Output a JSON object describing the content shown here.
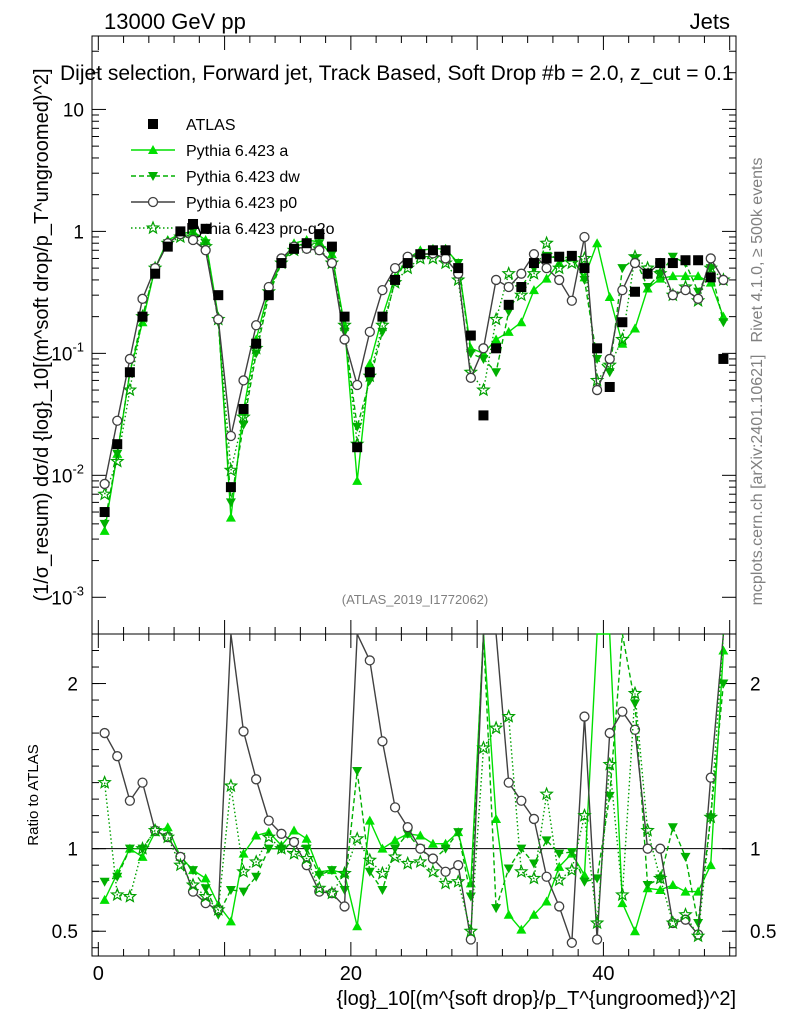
{
  "header": {
    "left_label": "13000 GeV pp",
    "right_label": "Jets",
    "plot_title": "Dijet selection, Forward jet, Track Based, Soft Drop #b = 2.0, z_cut = 0.1",
    "side_rivet": "Rivet 4.1.0, ≥ 500k events",
    "side_site": "mcplots.cern.ch [arXiv:2401.10621]",
    "analysis_id": "(ATLAS_2019_I1772062)"
  },
  "axes": {
    "ylabel_main": "(1/σ_resum) dσ/d {log}_10[(m^soft drop/p_T^ungroomed)^2]",
    "ylabel_ratio": "Ratio to ATLAS",
    "xlabel": "{log}_10[(m^{soft drop}/p_T^{ungroomed})^2]"
  },
  "legend": [
    {
      "key": "atlas",
      "label": "ATLAS"
    },
    {
      "key": "a",
      "label": "Pythia 6.423 a"
    },
    {
      "key": "dw",
      "label": "Pythia 6.423 dw"
    },
    {
      "key": "p0",
      "label": "Pythia 6.423 p0"
    },
    {
      "key": "pro",
      "label": "Pythia 6.423 pro-q2o"
    }
  ],
  "chart_data": {
    "type": "scatter",
    "main": {
      "yscale": "log",
      "xlim": [
        -0.5,
        50.5
      ],
      "ylim": [
        0.0005,
        40
      ],
      "yticks": [
        {
          "v": 0.001,
          "label": "10^-3"
        },
        {
          "v": 0.01,
          "label": "10^-2"
        },
        {
          "v": 0.1,
          "label": "10^-1"
        },
        {
          "v": 1,
          "label": "1"
        },
        {
          "v": 10,
          "label": "10"
        }
      ]
    },
    "ratio": {
      "ylim": [
        0.35,
        2.3
      ],
      "yticks": [
        {
          "v": 0.5,
          "label": "0.5"
        },
        {
          "v": 1,
          "label": "1"
        },
        {
          "v": 2,
          "label": "2"
        }
      ]
    },
    "xticks": [
      {
        "v": 0,
        "label": "0"
      },
      {
        "v": 20,
        "label": "20"
      },
      {
        "v": 40,
        "label": "40"
      }
    ],
    "x": [
      0.5,
      1.5,
      2.5,
      3.5,
      4.5,
      5.5,
      6.5,
      7.5,
      8.5,
      9.5,
      10.5,
      11.5,
      12.5,
      13.5,
      14.5,
      15.5,
      16.5,
      17.5,
      18.5,
      19.5,
      20.5,
      21.5,
      22.5,
      23.5,
      24.5,
      25.5,
      26.5,
      27.5,
      28.5,
      29.5,
      30.5,
      31.5,
      32.5,
      33.5,
      34.5,
      35.5,
      36.5,
      37.5,
      38.5,
      39.5,
      40.5,
      41.5,
      42.5,
      43.5,
      44.5,
      45.5,
      46.5,
      47.5,
      48.5,
      49.5
    ],
    "series": [
      {
        "key": "atlas",
        "name": "ATLAS",
        "color": "#000000",
        "values": [
          0.005,
          0.018,
          0.07,
          0.2,
          0.45,
          0.75,
          1.0,
          1.15,
          1.05,
          0.3,
          0.008,
          0.035,
          0.12,
          0.3,
          0.55,
          0.72,
          0.8,
          0.95,
          0.75,
          0.2,
          0.017,
          0.07,
          0.2,
          0.4,
          0.55,
          0.65,
          0.7,
          0.7,
          0.5,
          0.14,
          0.031,
          0.11,
          0.25,
          0.35,
          0.55,
          0.6,
          0.62,
          0.63,
          0.5,
          0.11,
          0.053,
          0.18,
          0.32,
          0.45,
          0.55,
          0.55,
          0.58,
          0.58,
          0.42,
          0.09
        ]
      },
      {
        "key": "a",
        "name": "Pythia 6.423 a",
        "color": "#00e000",
        "values": [
          0.0035,
          0.015,
          0.07,
          0.18,
          0.5,
          0.85,
          0.95,
          1.0,
          0.85,
          0.2,
          0.0045,
          0.034,
          0.13,
          0.33,
          0.56,
          0.8,
          0.85,
          0.82,
          0.65,
          0.17,
          0.009,
          0.082,
          0.2,
          0.42,
          0.6,
          0.7,
          0.72,
          0.72,
          0.55,
          0.11,
          0.1,
          0.13,
          0.15,
          0.18,
          0.33,
          0.41,
          0.55,
          0.61,
          0.42,
          0.8,
          0.29,
          0.12,
          0.16,
          0.34,
          0.41,
          0.43,
          0.43,
          0.43,
          0.38,
          0.2
        ]
      },
      {
        "key": "dw",
        "name": "Pythia 6.423 dw",
        "color": "#00b000",
        "values": [
          0.004,
          0.015,
          0.07,
          0.2,
          0.5,
          0.8,
          0.95,
          1.0,
          0.8,
          0.18,
          0.006,
          0.026,
          0.1,
          0.3,
          0.55,
          0.75,
          0.8,
          0.8,
          0.65,
          0.15,
          0.025,
          0.06,
          0.15,
          0.4,
          0.6,
          0.65,
          0.65,
          0.7,
          0.55,
          0.1,
          0.09,
          0.07,
          0.22,
          0.35,
          0.5,
          0.63,
          0.6,
          0.62,
          0.4,
          0.09,
          0.07,
          0.5,
          0.6,
          0.35,
          0.45,
          0.62,
          0.55,
          0.32,
          0.5,
          0.18
        ]
      },
      {
        "key": "p0",
        "name": "Pythia 6.423 p0",
        "color": "#404040",
        "values": [
          0.0085,
          0.028,
          0.09,
          0.28,
          0.5,
          0.8,
          0.95,
          0.85,
          0.7,
          0.19,
          0.021,
          0.06,
          0.17,
          0.35,
          0.6,
          0.75,
          0.72,
          0.7,
          0.55,
          0.13,
          0.055,
          0.15,
          0.33,
          0.5,
          0.62,
          0.65,
          0.66,
          0.6,
          0.45,
          0.063,
          0.11,
          0.4,
          0.35,
          0.45,
          0.65,
          0.5,
          0.4,
          0.27,
          0.9,
          0.05,
          0.09,
          0.33,
          0.55,
          0.45,
          0.55,
          0.3,
          0.33,
          0.28,
          0.6,
          0.4
        ]
      },
      {
        "key": "pro",
        "name": "Pythia 6.423 pro-q2o",
        "color": "#00a000",
        "values": [
          0.007,
          0.013,
          0.05,
          0.2,
          0.5,
          0.8,
          0.9,
          0.9,
          0.75,
          0.19,
          0.011,
          0.03,
          0.11,
          0.32,
          0.55,
          0.7,
          0.75,
          0.72,
          0.55,
          0.17,
          0.018,
          0.065,
          0.17,
          0.38,
          0.5,
          0.6,
          0.6,
          0.55,
          0.4,
          0.07,
          0.05,
          0.19,
          0.45,
          0.3,
          0.45,
          0.8,
          0.5,
          0.55,
          0.6,
          0.06,
          0.08,
          0.13,
          0.62,
          0.5,
          0.45,
          0.3,
          0.35,
          0.27,
          0.5,
          0.4
        ]
      }
    ],
    "ratios": [
      {
        "key": "a",
        "color": "#00e000",
        "values": [
          0.69,
          0.85,
          1.0,
          0.95,
          1.1,
          1.13,
          0.95,
          0.87,
          0.82,
          0.66,
          0.56,
          0.97,
          1.08,
          1.1,
          1.02,
          1.11,
          1.06,
          0.86,
          0.87,
          0.85,
          0.53,
          1.17,
          1.0,
          1.05,
          1.09,
          1.08,
          1.03,
          1.03,
          1.1,
          0.79,
          3.2,
          1.18,
          0.6,
          0.51,
          0.6,
          0.68,
          0.89,
          0.97,
          0.84,
          7.3,
          5.5,
          0.67,
          0.5,
          0.76,
          0.75,
          0.78,
          0.74,
          0.74,
          0.9,
          2.2
        ]
      },
      {
        "key": "dw",
        "name": "Pythia 6.423 dw",
        "color": "#00b000",
        "values": [
          0.8,
          0.83,
          1.0,
          1.0,
          1.11,
          1.07,
          0.95,
          0.87,
          0.76,
          0.6,
          0.75,
          0.74,
          0.83,
          1.0,
          1.0,
          1.04,
          1.0,
          0.84,
          0.87,
          0.75,
          1.47,
          0.86,
          0.75,
          1.0,
          1.09,
          1.0,
          0.93,
          1.0,
          1.1,
          0.71,
          2.9,
          0.64,
          0.88,
          1.0,
          0.91,
          1.05,
          0.97,
          0.98,
          0.8,
          0.82,
          1.32,
          2.78,
          1.88,
          0.78,
          0.82,
          1.13,
          0.95,
          0.55,
          1.19,
          2.0
        ]
      },
      {
        "key": "p0",
        "name": "Pythia 6.423 p0",
        "color": "#404040",
        "values": [
          1.7,
          1.56,
          1.29,
          1.4,
          1.11,
          1.07,
          0.95,
          0.74,
          0.67,
          0.63,
          2.6,
          1.71,
          1.42,
          1.17,
          1.09,
          1.04,
          0.9,
          0.74,
          0.73,
          0.65,
          3.2,
          2.14,
          1.65,
          1.25,
          1.13,
          1.0,
          0.94,
          0.86,
          0.9,
          0.45,
          3.5,
          3.6,
          1.4,
          1.29,
          1.18,
          0.83,
          0.65,
          0.43,
          1.8,
          0.45,
          1.7,
          1.83,
          1.72,
          1.0,
          1.0,
          0.55,
          0.57,
          0.48,
          1.43,
          4.4
        ]
      },
      {
        "key": "pro",
        "name": "Pythia 6.423 pro-q2o",
        "color": "#00a000",
        "values": [
          1.4,
          0.72,
          0.71,
          1.0,
          1.11,
          1.07,
          0.9,
          0.78,
          0.71,
          0.63,
          1.38,
          0.86,
          0.92,
          1.07,
          1.0,
          0.97,
          0.94,
          0.76,
          0.73,
          0.85,
          1.06,
          0.93,
          0.85,
          0.95,
          0.91,
          0.92,
          0.86,
          0.79,
          0.8,
          0.5,
          1.61,
          1.73,
          1.8,
          0.86,
          0.82,
          1.33,
          0.81,
          0.87,
          1.2,
          0.55,
          1.51,
          0.72,
          1.94,
          1.11,
          0.82,
          0.55,
          0.6,
          0.47,
          1.19,
          4.4
        ]
      }
    ]
  }
}
